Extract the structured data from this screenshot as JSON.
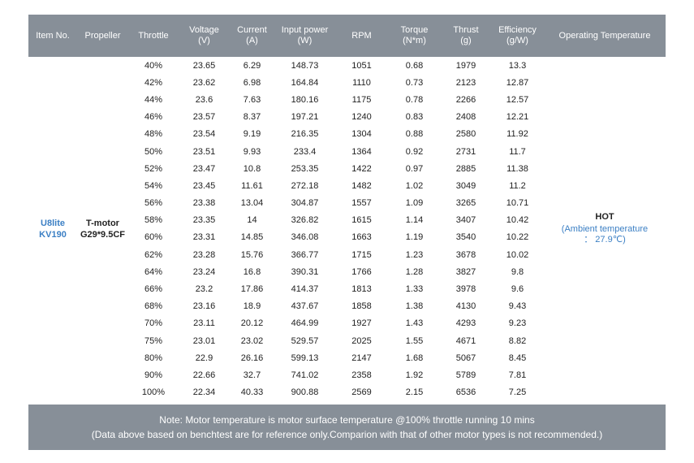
{
  "headers": [
    {
      "label": "Item No.",
      "unit": ""
    },
    {
      "label": "Propeller",
      "unit": ""
    },
    {
      "label": "Throttle",
      "unit": ""
    },
    {
      "label": "Voltage",
      "unit": "(V)"
    },
    {
      "label": "Current",
      "unit": "(A)"
    },
    {
      "label": "Input power",
      "unit": "(W)"
    },
    {
      "label": "RPM",
      "unit": ""
    },
    {
      "label": "Torque",
      "unit": "(N*m)"
    },
    {
      "label": "Thrust",
      "unit": "(g)"
    },
    {
      "label": "Efficiency",
      "unit": "(g/W)"
    },
    {
      "label": "Operating Temperature",
      "unit": ""
    }
  ],
  "item": {
    "line1": "U8lite",
    "line2": "KV190"
  },
  "propeller": {
    "line1": "T-motor",
    "line2": "G29*9.5CF"
  },
  "temperature": {
    "status": "HOT",
    "ambient_line1": "(Ambient temperature",
    "ambient_line2": "： 27.9℃)"
  },
  "rows": [
    [
      "40%",
      "23.65",
      "6.29",
      "148.73",
      "1051",
      "0.68",
      "1979",
      "13.3"
    ],
    [
      "42%",
      "23.62",
      "6.98",
      "164.84",
      "1110",
      "0.73",
      "2123",
      "12.87"
    ],
    [
      "44%",
      "23.6",
      "7.63",
      "180.16",
      "1175",
      "0.78",
      "2266",
      "12.57"
    ],
    [
      "46%",
      "23.57",
      "8.37",
      "197.21",
      "1240",
      "0.83",
      "2408",
      "12.21"
    ],
    [
      "48%",
      "23.54",
      "9.19",
      "216.35",
      "1304",
      "0.88",
      "2580",
      "11.92"
    ],
    [
      "50%",
      "23.51",
      "9.93",
      "233.4",
      "1364",
      "0.92",
      "2731",
      "11.7"
    ],
    [
      "52%",
      "23.47",
      "10.8",
      "253.35",
      "1422",
      "0.97",
      "2885",
      "11.38"
    ],
    [
      "54%",
      "23.45",
      "11.61",
      "272.18",
      "1482",
      "1.02",
      "3049",
      "11.2"
    ],
    [
      "56%",
      "23.38",
      "13.04",
      "304.87",
      "1557",
      "1.09",
      "3265",
      "10.71"
    ],
    [
      "58%",
      "23.35",
      "14",
      "326.82",
      "1615",
      "1.14",
      "3407",
      "10.42"
    ],
    [
      "60%",
      "23.31",
      "14.85",
      "346.08",
      "1663",
      "1.19",
      "3540",
      "10.22"
    ],
    [
      "62%",
      "23.28",
      "15.76",
      "366.77",
      "1715",
      "1.23",
      "3678",
      "10.02"
    ],
    [
      "64%",
      "23.24",
      "16.8",
      "390.31",
      "1766",
      "1.28",
      "3827",
      "9.8"
    ],
    [
      "66%",
      "23.2",
      "17.86",
      "414.37",
      "1813",
      "1.33",
      "3978",
      "9.6"
    ],
    [
      "68%",
      "23.16",
      "18.9",
      "437.67",
      "1858",
      "1.38",
      "4130",
      "9.43"
    ],
    [
      "70%",
      "23.11",
      "20.12",
      "464.99",
      "1927",
      "1.43",
      "4293",
      "9.23"
    ],
    [
      "75%",
      "23.01",
      "23.02",
      "529.57",
      "2025",
      "1.55",
      "4671",
      "8.82"
    ],
    [
      "80%",
      "22.9",
      "26.16",
      "599.13",
      "2147",
      "1.68",
      "5067",
      "8.45"
    ],
    [
      "90%",
      "22.66",
      "32.7",
      "741.02",
      "2358",
      "1.92",
      "5789",
      "7.81"
    ],
    [
      "100%",
      "22.34",
      "40.33",
      "900.88",
      "2569",
      "2.15",
      "6536",
      "7.25"
    ]
  ],
  "note": {
    "line1": "Note: Motor temperature is motor surface temperature @100% throttle running 10 mins",
    "line2": "(Data above based on benchtest are for reference only.Comparion with that of other motor types is not recommended.)"
  }
}
